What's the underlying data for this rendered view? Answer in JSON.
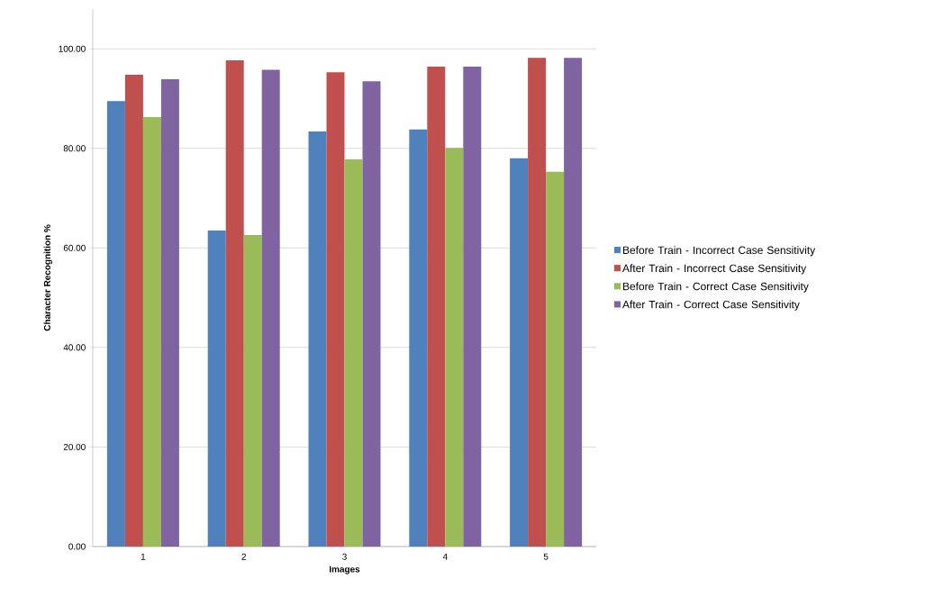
{
  "chart_data": {
    "type": "bar",
    "xlabel": "Images",
    "ylabel": "Character Recognition %",
    "categories": [
      "1",
      "2",
      "3",
      "4",
      "5"
    ],
    "series": [
      {
        "name": "Before Train - Incorrect Case Sensitivity",
        "color": "#4f81bd",
        "values": [
          89.5,
          63.5,
          83.4,
          83.8,
          78.0
        ]
      },
      {
        "name": "After Train - Incorrect Case Sensitivity",
        "color": "#c0504d",
        "values": [
          94.8,
          97.7,
          95.3,
          96.4,
          98.2
        ]
      },
      {
        "name": "Before Train  - Correct Case Sensitivity",
        "color": "#9bbb59",
        "values": [
          86.3,
          62.6,
          77.8,
          80.1,
          75.3
        ]
      },
      {
        "name": "After Train  - Correct Case Sensitivity",
        "color": "#8064a2",
        "values": [
          93.9,
          95.8,
          93.5,
          96.4,
          98.2
        ]
      }
    ],
    "ylim": [
      0,
      108
    ],
    "yticks": [
      {
        "value": 0,
        "label": "0.00"
      },
      {
        "value": 20,
        "label": "20.00"
      },
      {
        "value": 40,
        "label": "40.00"
      },
      {
        "value": 60,
        "label": "60.00"
      },
      {
        "value": 80,
        "label": "80.00"
      },
      {
        "value": 100,
        "label": "100.00"
      }
    ],
    "grid": "y",
    "legend": "right"
  }
}
